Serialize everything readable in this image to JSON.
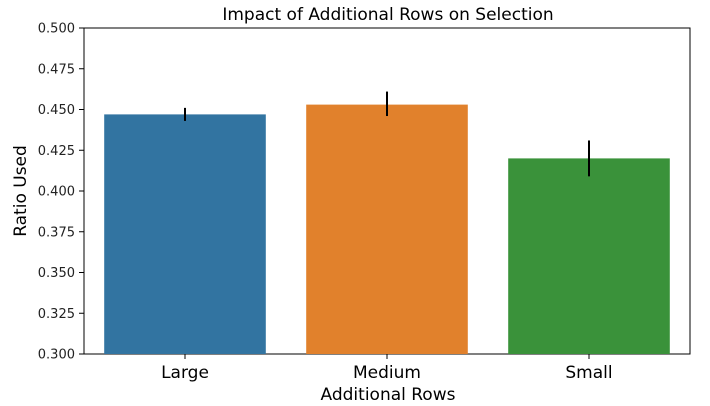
{
  "chart_data": {
    "type": "bar",
    "title": "Impact of Additional Rows on Selection",
    "xlabel": "Additional Rows",
    "ylabel": "Ratio Used",
    "categories": [
      "Large",
      "Medium",
      "Small"
    ],
    "values": [
      0.447,
      0.453,
      0.42
    ],
    "error_low": [
      0.443,
      0.446,
      0.409
    ],
    "error_high": [
      0.451,
      0.461,
      0.431
    ],
    "colors": [
      "#3274a1",
      "#e1812c",
      "#3a923a"
    ],
    "ylim": [
      0.3,
      0.5
    ],
    "yticks": [
      "0.300",
      "0.325",
      "0.350",
      "0.375",
      "0.400",
      "0.425",
      "0.450",
      "0.475",
      "0.500"
    ],
    "grid": false,
    "legend": "none"
  }
}
